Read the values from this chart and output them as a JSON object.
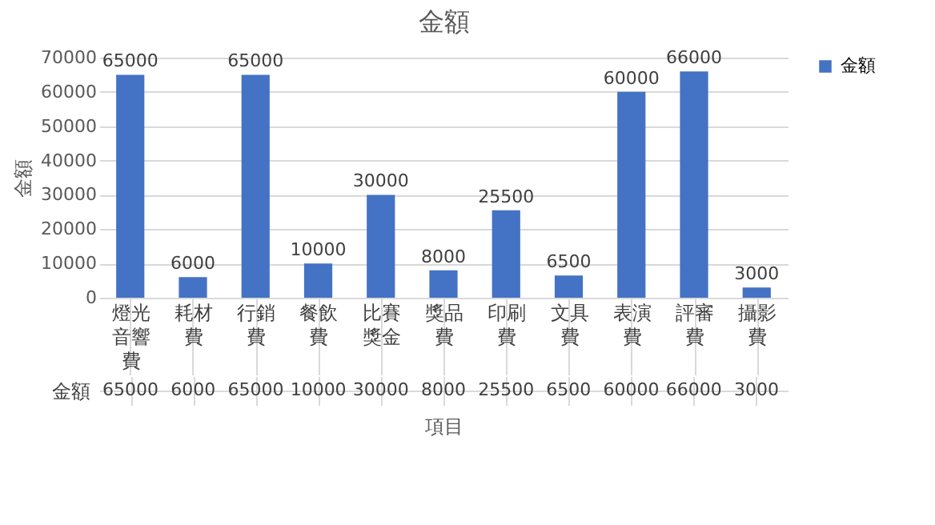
{
  "chart_data": {
    "type": "bar",
    "title": "金額",
    "xlabel": "項目",
    "ylabel": "金額",
    "categories": [
      "燈光音響費",
      "耗材費",
      "行銷費",
      "餐飲費",
      "比賽獎金",
      "獎品費",
      "印刷費",
      "文具費",
      "表演費",
      "評審費",
      "攝影費"
    ],
    "series": [
      {
        "name": "金額",
        "color": "#4472c4",
        "values": [
          65000,
          6000,
          65000,
          10000,
          30000,
          8000,
          25500,
          6500,
          60000,
          66000,
          3000
        ],
        "value_labels": [
          "65000",
          "6000",
          "65000",
          "10000",
          "30000",
          "8000",
          "25500",
          "6500",
          "60000",
          "66000",
          "3000"
        ]
      }
    ],
    "ylim": [
      0,
      70000
    ],
    "yticks": [
      0,
      10000,
      20000,
      30000,
      40000,
      50000,
      60000,
      70000
    ],
    "grid": "y",
    "legend": "right",
    "data_labels": true
  }
}
